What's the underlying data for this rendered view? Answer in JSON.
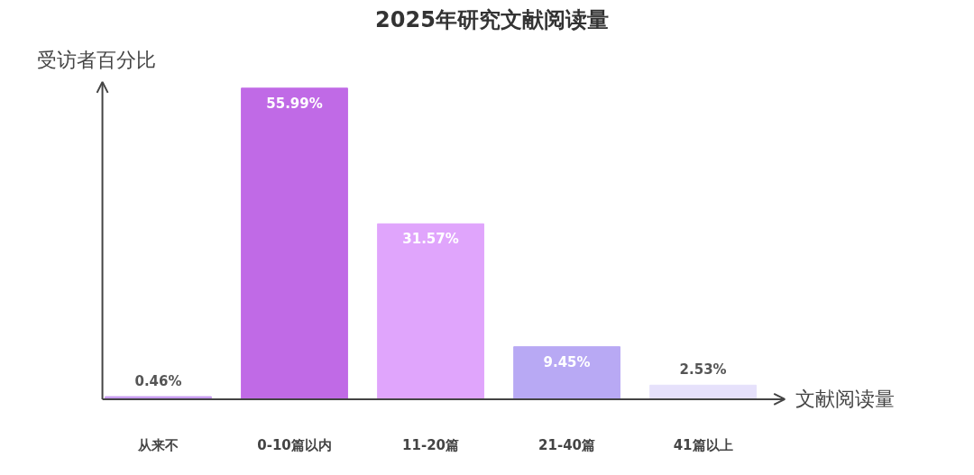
{
  "chart_data": {
    "type": "bar",
    "title": "2025年研究文献阅读量",
    "xlabel": "文献阅读量",
    "ylabel": "受访者百分比",
    "categories": [
      "从来不",
      "0-10篇以内",
      "11-20篇",
      "21-40篇",
      "41篇以上"
    ],
    "values": [
      0.46,
      55.99,
      31.57,
      9.45,
      2.53
    ],
    "colors": [
      "#c79cf0",
      "#c06ae6",
      "#e0a5fc",
      "#b8a9f4",
      "#e6e1fb"
    ],
    "value_labels": [
      "0.46%",
      "55.99%",
      "31.57%",
      "9.45%",
      "2.53%"
    ]
  }
}
